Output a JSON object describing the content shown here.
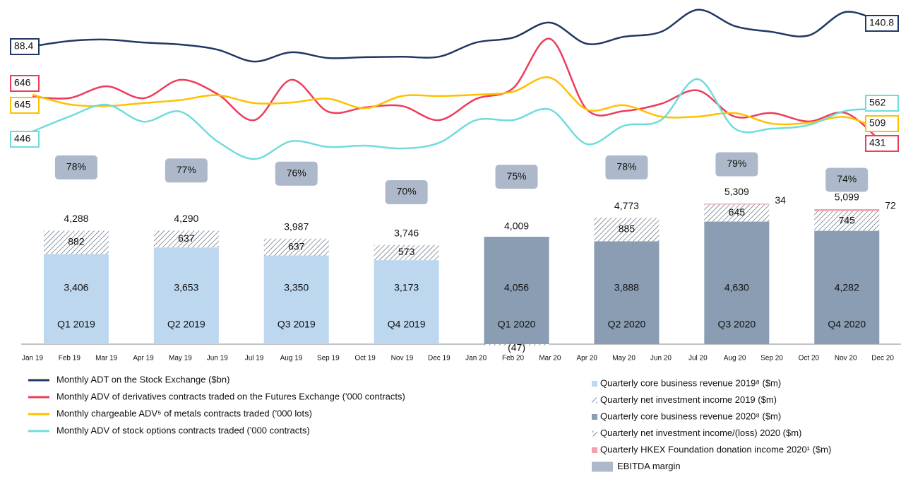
{
  "chart_data": [
    {
      "type": "bar",
      "categories": [
        "Q1 2019",
        "Q2 2019",
        "Q3 2019",
        "Q4 2019",
        "Q1 2020",
        "Q2 2020",
        "Q3 2020",
        "Q4 2020"
      ],
      "ylim": [
        0,
        13000
      ],
      "series": [
        {
          "name": "Quarterly core business revenue 2019⁸ ($m)",
          "color": "#bdd7ee",
          "values": [
            3406,
            3653,
            3350,
            3173,
            null,
            null,
            null,
            null
          ],
          "value_labels": [
            "3,406",
            "3,653",
            "3,350",
            "3,173",
            null,
            null,
            null,
            null
          ]
        },
        {
          "name": "Quarterly net investment income 2019 ($m)",
          "color": "#44546a",
          "pattern": "hatch",
          "values": [
            882,
            637,
            637,
            573,
            null,
            null,
            null,
            null
          ]
        },
        {
          "name": "Quarterly core business revenue 2020⁸ ($m)",
          "color": "#8a9db3",
          "values": [
            null,
            null,
            null,
            null,
            4056,
            3888,
            4630,
            4282
          ],
          "value_labels": [
            null,
            null,
            null,
            null,
            "4,056",
            "3,888",
            "4,630",
            "4,282"
          ]
        },
        {
          "name": "Quarterly net investment income/(loss) 2020 ($m)",
          "color": "#44546a",
          "pattern": "hatch",
          "values": [
            null,
            null,
            null,
            null,
            -47,
            885,
            645,
            745
          ],
          "value_labels": [
            null,
            null,
            null,
            null,
            "(47)",
            "885",
            "645",
            "745"
          ]
        },
        {
          "name": "Quarterly HKEX Foundation donation income 2020¹ ($m)",
          "color": "#f4a0b0",
          "values": [
            null,
            null,
            null,
            null,
            null,
            null,
            34,
            72
          ]
        }
      ],
      "totals": [
        4288,
        4290,
        3987,
        3746,
        4009,
        4773,
        5309,
        5099
      ],
      "total_labels": [
        "4,288",
        "4,290",
        "3,987",
        "3,746",
        "4,009",
        "4,773",
        "5,309",
        "5,099"
      ]
    },
    {
      "type": "box",
      "name": "EBITDA margin",
      "color": "#adb9ca",
      "values": [
        78,
        77,
        76,
        70,
        75,
        78,
        79,
        74
      ],
      "value_labels": [
        "78%",
        "77%",
        "76%",
        "70%",
        "75%",
        "78%",
        "79%",
        "74%"
      ],
      "ylim": [
        21,
        132
      ]
    },
    {
      "type": "line",
      "categories": [
        "Jan 19",
        "Feb 19",
        "Mar 19",
        "Apr 19",
        "May 19",
        "Jun 19",
        "Jul 19",
        "Aug 19",
        "Sep 19",
        "Oct 19",
        "Nov 19",
        "Dec 19",
        "Jan 20",
        "Feb 20",
        "Mar 20",
        "Apr 20",
        "May 20",
        "Jun 20",
        "Jul 20",
        "Aug 20",
        "Sep 20",
        "Oct 20",
        "Nov 20",
        "Dec 20"
      ],
      "series": [
        {
          "name": "Monthly ADT on the Stock Exchange ($bn)",
          "color": "#1f3864",
          "ylim": [
            -190,
            193
          ],
          "values": [
            88.4,
            100.5,
            103.6,
            97,
            92.5,
            81,
            54,
            75,
            62,
            64,
            65,
            65,
            97,
            108,
            142,
            94,
            110,
            121,
            171,
            134,
            121,
            113,
            166,
            140.8
          ]
        },
        {
          "name": "Monthly ADV of derivatives contracts traded on the Futures Exchange ('000 contracts)",
          "color": "#ee3c5a",
          "ylim": [
            310,
            1092
          ],
          "values": [
            646,
            640,
            694,
            639,
            724,
            659,
            538,
            724,
            577,
            597,
            603,
            538,
            636,
            685,
            913,
            587,
            580,
            613,
            675,
            554,
            571,
            532,
            571,
            431
          ]
        },
        {
          "name": "Monthly chargeable ADV⁵ of metals contracts traded ('000 lots)",
          "color": "#ffc000",
          "ylim": [
            368,
            995
          ],
          "values": [
            645,
            609,
            603,
            614,
            625,
            643,
            614,
            616,
            630,
            595,
            640,
            640,
            645,
            656,
            708,
            590,
            606,
            564,
            564,
            577,
            538,
            541,
            562,
            509
          ]
        },
        {
          "name": "Monthly ADV of stock options contracts traded ('000 contracts)",
          "color": "#6fdcdc",
          "ylim": [
            244,
            1142
          ],
          "values": [
            446,
            525,
            588,
            498,
            551,
            394,
            300,
            394,
            364,
            371,
            356,
            386,
            506,
            506,
            562,
            379,
            476,
            506,
            723,
            461,
            461,
            480,
            555,
            562
          ]
        }
      ]
    }
  ]
}
